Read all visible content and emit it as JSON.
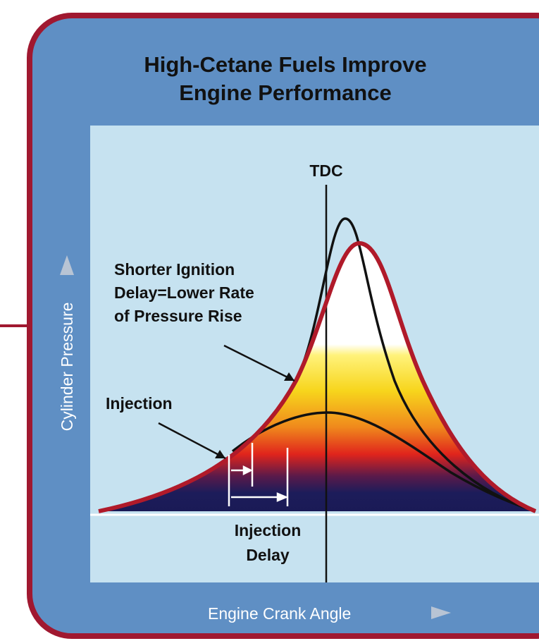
{
  "title": {
    "lines": [
      "High-Cetane Fuels Improve",
      "Engine Performance"
    ]
  },
  "labels": {
    "tdc": "TDC",
    "shorter_ignition": [
      "Shorter Ignition",
      "Delay=Lower Rate",
      "of Pressure Rise"
    ],
    "injection": "Injection",
    "injection_delay": [
      "Injection",
      "Delay"
    ],
    "x_axis": "Engine Crank Angle",
    "y_axis": "Cylinder Pressure"
  }
}
